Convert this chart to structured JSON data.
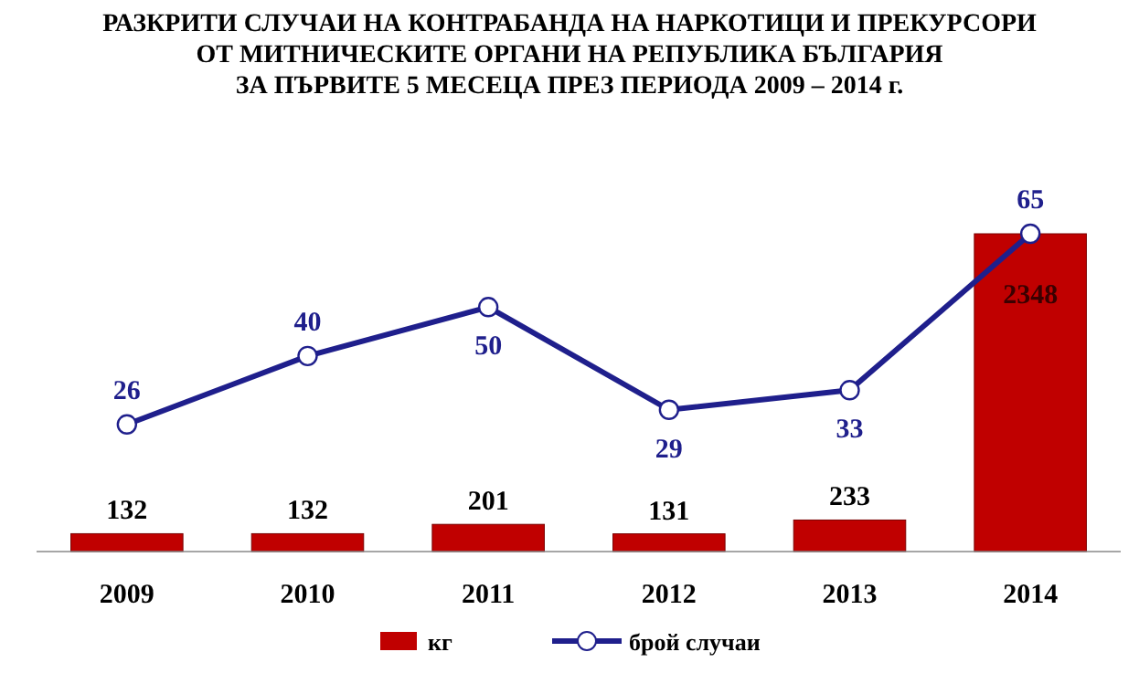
{
  "chart_data": {
    "type": "bar",
    "title": "РАЗКРИТИ СЛУЧАИ НА КОНТРАБАНДА НА НАРКОТИЦИ И ПРЕКУРСОРИ\nОТ МИТНИЧЕСКИТЕ ОРГАНИ НА РЕПУБЛИКА БЪЛГАРИЯ\nЗА ПЪРВИТЕ 5 МЕСЕЦА ПРЕЗ ПЕРИОДА 2009 – 2014 г.",
    "categories": [
      "2009",
      "2010",
      "2011",
      "2012",
      "2013",
      "2014"
    ],
    "data_labels": true,
    "legend": "bottom",
    "tick_labels": "x",
    "series": [
      {
        "name": "кг",
        "color": "#c00000",
        "values": [
          132,
          132,
          201,
          131,
          233,
          2348
        ]
      },
      {
        "name": "брой случаи",
        "type": "line",
        "axis": "y2",
        "color": "#1f1f8c",
        "marker": "circle",
        "values": [
          26,
          40,
          50,
          29,
          33,
          65
        ]
      }
    ]
  }
}
